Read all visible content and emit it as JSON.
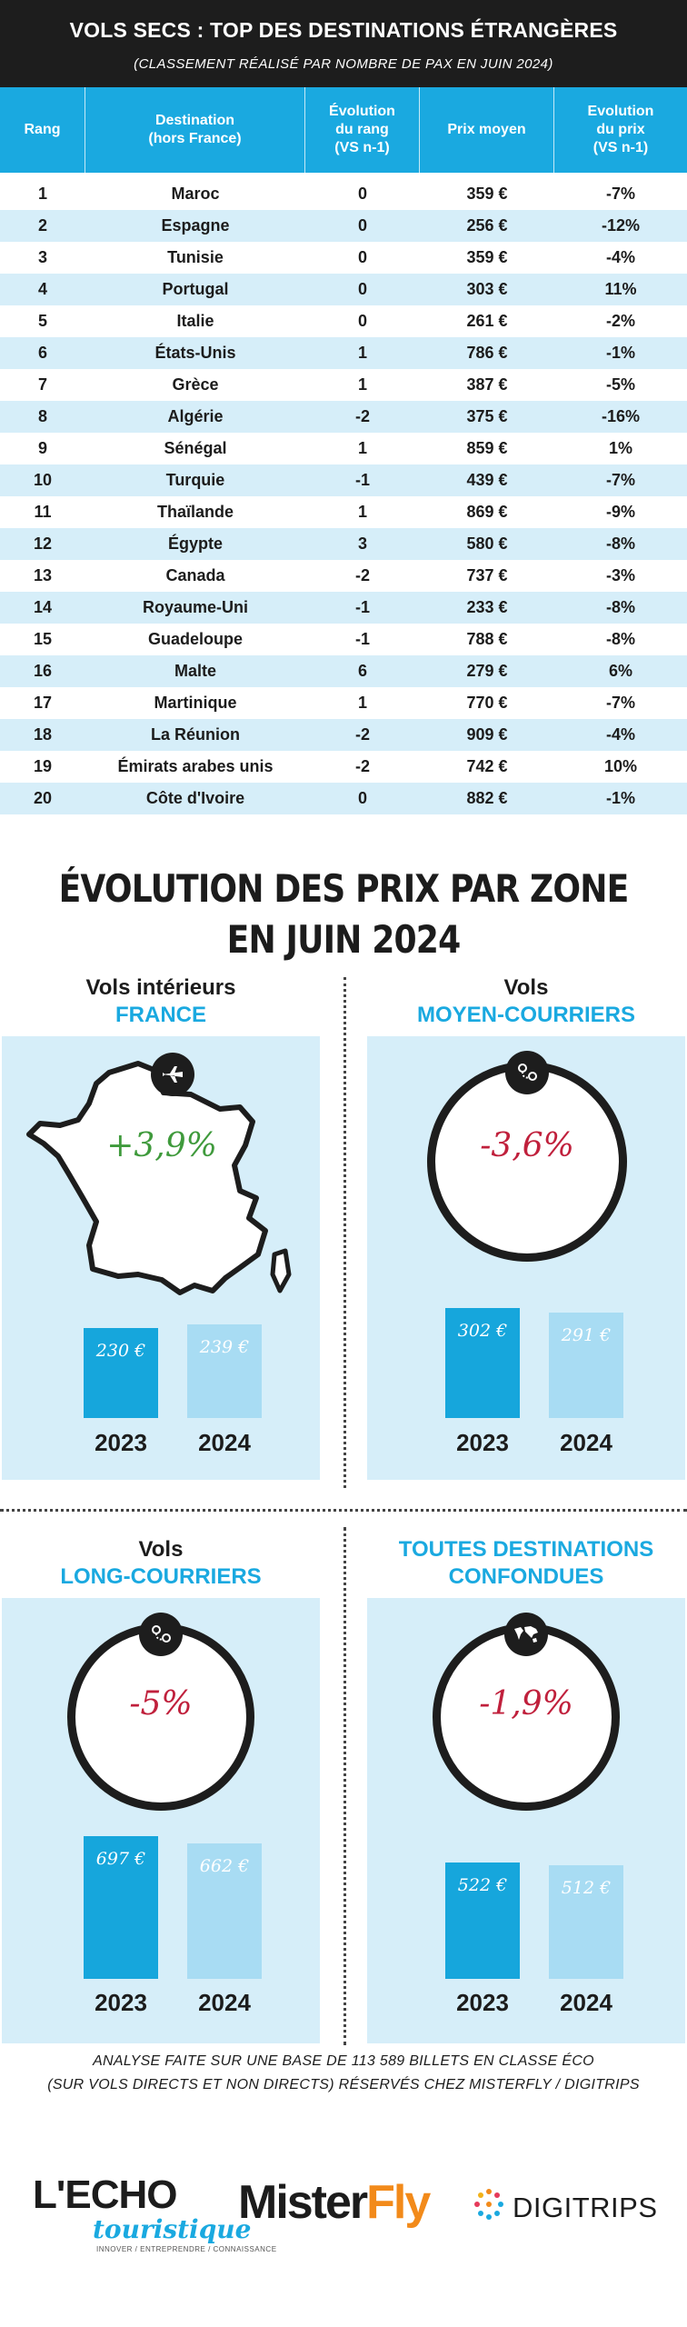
{
  "header": {
    "title": "VOLS SECS : TOP DES DESTINATIONS ÉTRANGÈRES",
    "subtitle": "(CLASSEMENT RÉALISÉ PAR NOMBRE DE PAX EN JUIN 2024)"
  },
  "table": {
    "headers": {
      "rank": "Rang",
      "dest_l1": "Destination",
      "dest_l2": "(hors France)",
      "evo_rank_l1": "Évolution",
      "evo_rank_l2": "du rang",
      "evo_rank_l3": "(VS n-1)",
      "price": "Prix moyen",
      "evo_price_l1": "Evolution",
      "evo_price_l2": "du prix",
      "evo_price_l3": "(VS n-1)"
    },
    "rows": [
      {
        "rank": "1",
        "destination": "Maroc",
        "rank_change": "0",
        "price": "359 €",
        "price_change": "-7%"
      },
      {
        "rank": "2",
        "destination": "Espagne",
        "rank_change": "0",
        "price": "256 €",
        "price_change": "-12%"
      },
      {
        "rank": "3",
        "destination": "Tunisie",
        "rank_change": "0",
        "price": "359 €",
        "price_change": "-4%"
      },
      {
        "rank": "4",
        "destination": "Portugal",
        "rank_change": "0",
        "price": "303 €",
        "price_change": "11%"
      },
      {
        "rank": "5",
        "destination": "Italie",
        "rank_change": "0",
        "price": "261 €",
        "price_change": "-2%"
      },
      {
        "rank": "6",
        "destination": "États-Unis",
        "rank_change": "1",
        "price": "786 €",
        "price_change": "-1%"
      },
      {
        "rank": "7",
        "destination": "Grèce",
        "rank_change": "1",
        "price": "387 €",
        "price_change": "-5%"
      },
      {
        "rank": "8",
        "destination": "Algérie",
        "rank_change": "-2",
        "price": "375 €",
        "price_change": "-16%"
      },
      {
        "rank": "9",
        "destination": "Sénégal",
        "rank_change": "1",
        "price": "859 €",
        "price_change": "1%"
      },
      {
        "rank": "10",
        "destination": "Turquie",
        "rank_change": "-1",
        "price": "439 €",
        "price_change": "-7%"
      },
      {
        "rank": "11",
        "destination": "Thaïlande",
        "rank_change": "1",
        "price": "869 €",
        "price_change": "-9%"
      },
      {
        "rank": "12",
        "destination": "Égypte",
        "rank_change": "3",
        "price": "580 €",
        "price_change": "-8%"
      },
      {
        "rank": "13",
        "destination": "Canada",
        "rank_change": "-2",
        "price": "737 €",
        "price_change": "-3%"
      },
      {
        "rank": "14",
        "destination": "Royaume-Uni",
        "rank_change": "-1",
        "price": "233 €",
        "price_change": "-8%"
      },
      {
        "rank": "15",
        "destination": "Guadeloupe",
        "rank_change": "-1",
        "price": "788 €",
        "price_change": "-8%"
      },
      {
        "rank": "16",
        "destination": "Malte",
        "rank_change": "6",
        "price": "279 €",
        "price_change": "6%"
      },
      {
        "rank": "17",
        "destination": "Martinique",
        "rank_change": "1",
        "price": "770 €",
        "price_change": "-7%"
      },
      {
        "rank": "18",
        "destination": "La Réunion",
        "rank_change": "-2",
        "price": "909 €",
        "price_change": "-4%"
      },
      {
        "rank": "19",
        "destination": "Émirats arabes unis",
        "rank_change": "-2",
        "price": "742 €",
        "price_change": "10%"
      },
      {
        "rank": "20",
        "destination": "Côte d'Ivoire",
        "rank_change": "0",
        "price": "882 €",
        "price_change": "-1%"
      }
    ]
  },
  "section2": {
    "title_l1": "ÉVOLUTION DES PRIX PAR ZONE",
    "title_l2": "EN JUIN 2024"
  },
  "colors": {
    "accent_blue": "#1aa9e0",
    "bar_2023": "#16a6dc",
    "bar_2024": "#a8dcf3",
    "panel_bg": "#d6eef9",
    "positive": "#3f9a3c",
    "negative": "#c0203c"
  },
  "chart_data": [
    {
      "type": "bar",
      "title_l1": "Vols intérieurs",
      "title_l2": "FRANCE",
      "icon": "airplane-icon",
      "change": "+3,9%",
      "categories": [
        "2023",
        "2024"
      ],
      "values": [
        230,
        239
      ],
      "value_labels": [
        "230 €",
        "239 €"
      ]
    },
    {
      "type": "bar",
      "title_l1": "Vols",
      "title_l2": "MOYEN-COURRIERS",
      "icon": "route-pins-icon",
      "change": "-3,6%",
      "categories": [
        "2023",
        "2024"
      ],
      "values": [
        302,
        291
      ],
      "value_labels": [
        "302 €",
        "291 €"
      ]
    },
    {
      "type": "bar",
      "title_l1": "Vols",
      "title_l2": "LONG-COURRIERS",
      "icon": "route-pins-icon",
      "change": "-5%",
      "categories": [
        "2023",
        "2024"
      ],
      "values": [
        697,
        662
      ],
      "value_labels": [
        "697 €",
        "662 €"
      ]
    },
    {
      "type": "bar",
      "title_l1": "TOUTES DESTINATIONS",
      "title_l2": "CONFONDUES",
      "icon": "world-map-icon",
      "change": "-1,9%",
      "categories": [
        "2023",
        "2024"
      ],
      "values": [
        522,
        512
      ],
      "value_labels": [
        "522 €",
        "512 €"
      ]
    }
  ],
  "footer": {
    "line1": "ANALYSE FAITE SUR UNE BASE DE 113 589 BILLETS EN CLASSE ÉCO",
    "line2": "(SUR VOLS DIRECTS ET NON DIRECTS) RÉSERVÉS CHEZ MISTERFLY / DIGITRIPS"
  },
  "logos": {
    "echo_main": "L'ECHO",
    "echo_script": "touristique",
    "echo_tagline": "INNOVER / ENTREPRENDRE / CONNAISSANCE",
    "misterfly_a": "Mister",
    "misterfly_b": "Fly",
    "digitrips": "DIGITRIPS"
  }
}
